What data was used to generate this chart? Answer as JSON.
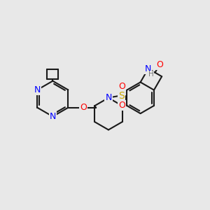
{
  "background_color": "#e8e8e8",
  "bond_color": "#1a1a1a",
  "n_color": "#0000ff",
  "o_color": "#ff0000",
  "s_color": "#ccaa00",
  "h_color": "#7a7a7a",
  "lw": 1.5,
  "figsize": [
    3.0,
    3.0
  ],
  "dpi": 100,
  "xlim": [
    0,
    10
  ],
  "ylim": [
    0,
    10
  ]
}
